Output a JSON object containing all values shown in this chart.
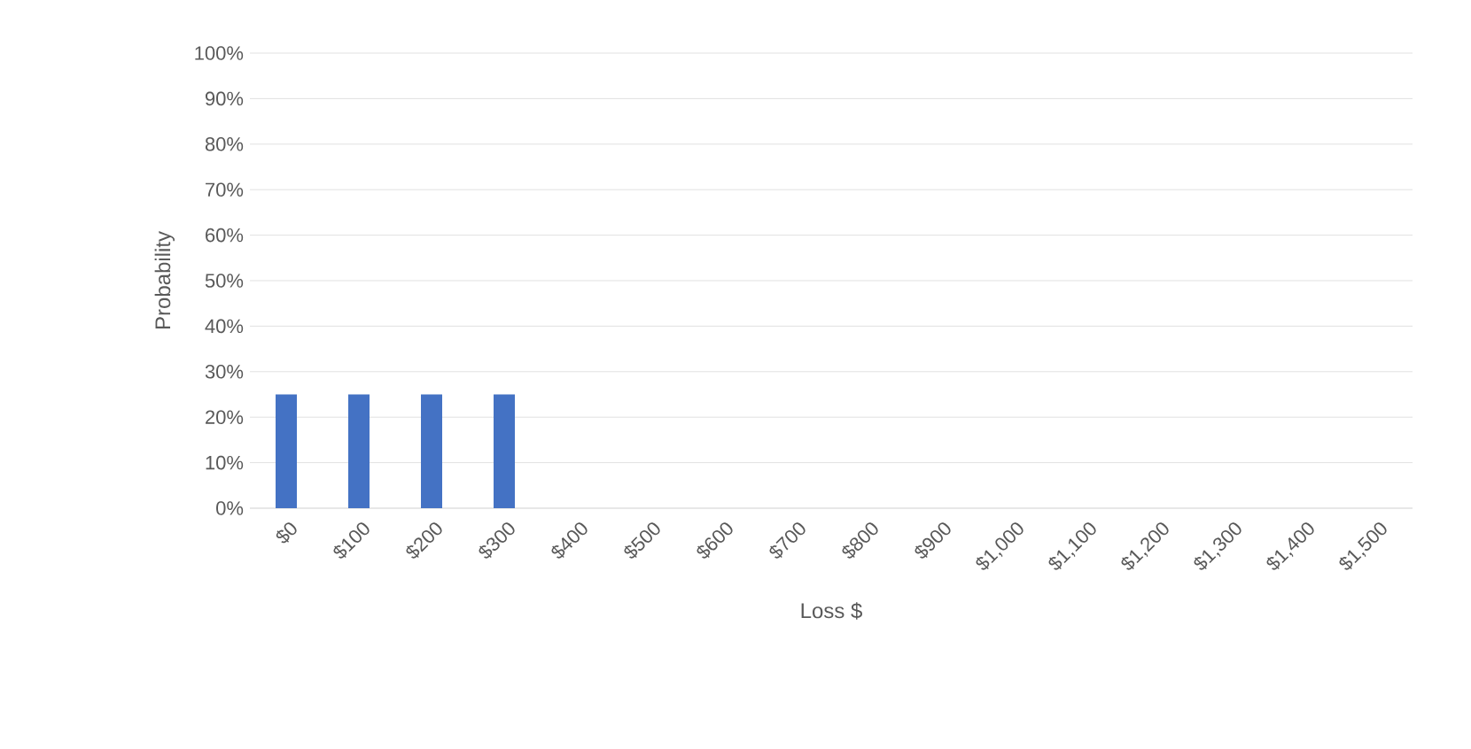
{
  "chart_data": {
    "type": "bar",
    "xlabel": "Loss $",
    "ylabel": "Probability",
    "categories": [
      "$0",
      "$100",
      "$200",
      "$300",
      "$400",
      "$500",
      "$600",
      "$700",
      "$800",
      "$900",
      "$1,000",
      "$1,100",
      "$1,200",
      "$1,300",
      "$1,400",
      "$1,500"
    ],
    "values": [
      25,
      25,
      25,
      25,
      0,
      0,
      0,
      0,
      0,
      0,
      0,
      0,
      0,
      0,
      0,
      0
    ],
    "color": "#4472c4",
    "ylim": [
      0,
      100
    ],
    "yticks": [
      {
        "value": 0,
        "label": "0%"
      },
      {
        "value": 10,
        "label": "10%"
      },
      {
        "value": 20,
        "label": "20%"
      },
      {
        "value": 30,
        "label": "30%"
      },
      {
        "value": 40,
        "label": "40%"
      },
      {
        "value": 50,
        "label": "50%"
      },
      {
        "value": 60,
        "label": "60%"
      },
      {
        "value": 70,
        "label": "70%"
      },
      {
        "value": 80,
        "label": "80%"
      },
      {
        "value": 90,
        "label": "90%"
      },
      {
        "value": 100,
        "label": "100%"
      }
    ],
    "grid": "y"
  }
}
